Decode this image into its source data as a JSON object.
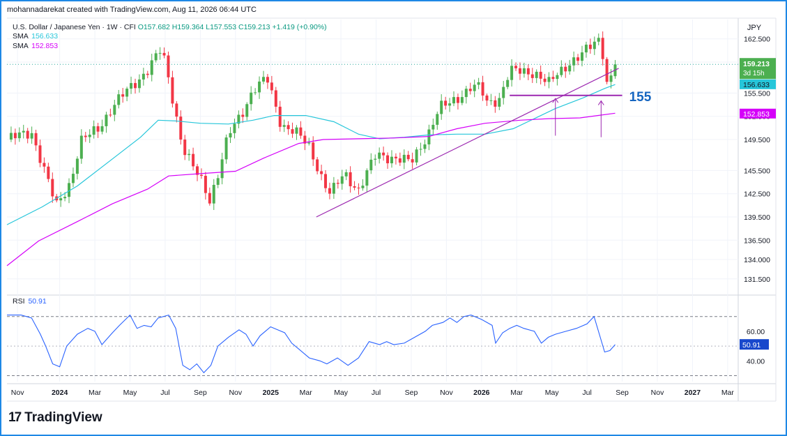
{
  "header": {
    "text": "mohannadarekat created with TradingView.com, Aug 11, 2026 06:44 UTC"
  },
  "symbol": {
    "name": "U.S. Dollar / Japanese Yen · 1W · CFI",
    "O": "O157.682",
    "H": "H159.364",
    "L": "L157.553",
    "C": "C159.213",
    "change": "+1.419 (+0.90%)"
  },
  "sma1": {
    "label": "SMA",
    "value": "156.633",
    "color": "#26c6da"
  },
  "sma2": {
    "label": "SMA",
    "value": "152.853",
    "color": "#d500f9"
  },
  "rsi": {
    "label": "RSI",
    "value": "50.91",
    "color": "#2962ff"
  },
  "currency": "JPY",
  "price_badge": {
    "price": "159.213",
    "countdown": "3d 15h"
  },
  "annotation": "155",
  "logo": "TradingView",
  "colors": {
    "up": "#4caf50",
    "down": "#f23645",
    "trendline": "#9c27b0",
    "frame": "#1e88e5"
  },
  "chart_data": [
    {
      "type": "candlestick",
      "title": "U.S. Dollar / Japanese Yen · 1W · CFI",
      "ylim": [
        129.5,
        165.0
      ],
      "price_ticks": [
        "162.500",
        "159.500",
        "155.500",
        "152.500",
        "149.500",
        "145.500",
        "142.500",
        "139.500",
        "136.500",
        "134.000",
        "131.500"
      ],
      "time_ticks": [
        {
          "label": "Nov",
          "t": 0.3
        },
        {
          "label": "2024",
          "t": 1.5,
          "bold": true
        },
        {
          "label": "Mar",
          "t": 2.5
        },
        {
          "label": "May",
          "t": 3.5
        },
        {
          "label": "Jul",
          "t": 4.5
        },
        {
          "label": "Sep",
          "t": 5.5
        },
        {
          "label": "Nov",
          "t": 6.5
        },
        {
          "label": "2025",
          "t": 7.5,
          "bold": true
        },
        {
          "label": "Mar",
          "t": 8.5
        },
        {
          "label": "May",
          "t": 9.5
        },
        {
          "label": "Jul",
          "t": 10.5
        },
        {
          "label": "Sep",
          "t": 11.5
        },
        {
          "label": "Nov",
          "t": 12.5
        },
        {
          "label": "2026",
          "t": 13.5,
          "bold": true
        },
        {
          "label": "Mar",
          "t": 14.5
        },
        {
          "label": "May",
          "t": 15.5
        },
        {
          "label": "Jul",
          "t": 16.5
        },
        {
          "label": "Sep",
          "t": 17.5
        },
        {
          "label": "Nov",
          "t": 18.5
        },
        {
          "label": "2027",
          "t": 19.5,
          "bold": true
        },
        {
          "label": "Mar",
          "t": 20.5
        }
      ],
      "keypoints": [
        [
          0.0,
          149.5
        ],
        [
          0.7,
          150.5
        ],
        [
          1.1,
          145
        ],
        [
          1.4,
          140.9
        ],
        [
          1.8,
          144
        ],
        [
          2.1,
          149.2
        ],
        [
          2.6,
          151
        ],
        [
          3.0,
          153.7
        ],
        [
          3.5,
          156.2
        ],
        [
          4.0,
          158.5
        ],
        [
          4.4,
          161.2
        ],
        [
          4.6,
          157.3
        ],
        [
          5.0,
          148.5
        ],
        [
          5.3,
          145.8
        ],
        [
          5.6,
          143.7
        ],
        [
          5.75,
          141.6
        ],
        [
          6.0,
          145
        ],
        [
          6.3,
          150
        ],
        [
          6.7,
          153.1
        ],
        [
          7.0,
          156
        ],
        [
          7.4,
          157.3
        ],
        [
          7.8,
          151.5
        ],
        [
          8.2,
          150.5
        ],
        [
          8.6,
          148.5
        ],
        [
          9.0,
          144.2
        ],
        [
          9.2,
          142.4
        ],
        [
          9.6,
          145.1
        ],
        [
          10.0,
          143
        ],
        [
          10.5,
          147.5
        ],
        [
          11.0,
          147.2
        ],
        [
          11.5,
          146.5
        ],
        [
          12.0,
          150.5
        ],
        [
          12.3,
          153.5
        ],
        [
          12.6,
          154.2
        ],
        [
          12.9,
          155.2
        ],
        [
          13.2,
          156.3
        ],
        [
          13.5,
          156.1
        ],
        [
          13.6,
          154.2
        ],
        [
          14.0,
          154.8
        ],
        [
          14.3,
          158.3
        ],
        [
          14.6,
          158.3
        ],
        [
          15.0,
          158.2
        ],
        [
          15.2,
          157.5
        ],
        [
          15.4,
          156.6
        ],
        [
          15.7,
          158.2
        ],
        [
          16.0,
          159.5
        ],
        [
          16.3,
          160.2
        ],
        [
          16.6,
          161.5
        ],
        [
          16.85,
          162.6
        ],
        [
          17.0,
          159.8
        ],
        [
          17.05,
          156.9
        ],
        [
          17.2,
          157.7
        ],
        [
          17.3,
          159.2
        ]
      ],
      "series": [
        {
          "name": "SMA",
          "value_label": "156.633",
          "color": "#26c6da",
          "points": [
            [
              0.0,
              138.5
            ],
            [
              1.0,
              140.8
            ],
            [
              2.0,
              143.5
            ],
            [
              3.0,
              147
            ],
            [
              3.8,
              149.8
            ],
            [
              4.3,
              152.0
            ],
            [
              4.8,
              151.9
            ],
            [
              5.5,
              151.6
            ],
            [
              6.3,
              151.5
            ],
            [
              7.0,
              152.0
            ],
            [
              7.6,
              152.6
            ],
            [
              8.5,
              152.6
            ],
            [
              9.3,
              151.8
            ],
            [
              10.0,
              150.2
            ],
            [
              10.6,
              149.6
            ],
            [
              11.3,
              149.8
            ],
            [
              12.0,
              150.1
            ],
            [
              12.8,
              150.2
            ],
            [
              13.6,
              150.2
            ],
            [
              14.4,
              150.9
            ],
            [
              15.0,
              152.2
            ],
            [
              15.6,
              153.5
            ],
            [
              16.4,
              154.9
            ],
            [
              17.0,
              156.1
            ],
            [
              17.3,
              156.6
            ]
          ]
        },
        {
          "name": "SMA",
          "value_label": "152.853",
          "color": "#d500f9",
          "points": [
            [
              0.0,
              133.2
            ],
            [
              0.9,
              136.4
            ],
            [
              2.0,
              138.9
            ],
            [
              3.0,
              141.2
            ],
            [
              4.0,
              143.1
            ],
            [
              4.6,
              144.8
            ],
            [
              5.5,
              145.1
            ],
            [
              6.5,
              145.4
            ],
            [
              7.3,
              147.1
            ],
            [
              8.3,
              149.0
            ],
            [
              9.0,
              149.5
            ],
            [
              10.0,
              149.6
            ],
            [
              11.0,
              149.7
            ],
            [
              12.0,
              149.9
            ],
            [
              12.8,
              150.9
            ],
            [
              13.6,
              151.6
            ],
            [
              14.6,
              152.0
            ],
            [
              15.4,
              152.2
            ],
            [
              16.3,
              152.3
            ],
            [
              16.8,
              152.6
            ],
            [
              17.3,
              152.9
            ]
          ]
        }
      ],
      "drawings": [
        {
          "type": "trendline",
          "from": [
            8.8,
            139.5
          ],
          "to": [
            17.4,
            158.7
          ]
        },
        {
          "type": "horizontal_line",
          "y": 155.2,
          "from_t": 14.3,
          "to_t": 17.5,
          "label": "155"
        },
        {
          "type": "arrow_up",
          "t": 15.6,
          "from": 150.0,
          "to": 154.8
        },
        {
          "type": "arrow_up",
          "t": 16.9,
          "from": 149.8,
          "to": 154.5
        }
      ]
    },
    {
      "type": "line",
      "title": "RSI",
      "ylim": [
        26,
        84
      ],
      "ticks": [
        "60.00",
        "40.00"
      ],
      "bands": [
        30,
        70
      ],
      "series": [
        {
          "name": "RSI",
          "value_label": "50.91",
          "color": "#2962ff",
          "points": [
            [
              0.0,
              71
            ],
            [
              0.4,
              71
            ],
            [
              0.7,
              69
            ],
            [
              0.95,
              58
            ],
            [
              1.1,
              50
            ],
            [
              1.3,
              38
            ],
            [
              1.5,
              36
            ],
            [
              1.7,
              50
            ],
            [
              2.0,
              58
            ],
            [
              2.3,
              62
            ],
            [
              2.5,
              60
            ],
            [
              2.7,
              51
            ],
            [
              3.0,
              59
            ],
            [
              3.2,
              64
            ],
            [
              3.5,
              71
            ],
            [
              3.7,
              62
            ],
            [
              3.9,
              64
            ],
            [
              4.1,
              63
            ],
            [
              4.3,
              69
            ],
            [
              4.6,
              71
            ],
            [
              4.8,
              62
            ],
            [
              5.0,
              37
            ],
            [
              5.2,
              34
            ],
            [
              5.4,
              38
            ],
            [
              5.6,
              32
            ],
            [
              5.8,
              37
            ],
            [
              6.0,
              50
            ],
            [
              6.3,
              56
            ],
            [
              6.6,
              61
            ],
            [
              6.8,
              58
            ],
            [
              7.0,
              50
            ],
            [
              7.2,
              57
            ],
            [
              7.5,
              63
            ],
            [
              7.7,
              61
            ],
            [
              7.9,
              59
            ],
            [
              8.1,
              52
            ],
            [
              8.3,
              48
            ],
            [
              8.6,
              42
            ],
            [
              8.9,
              40
            ],
            [
              9.1,
              38
            ],
            [
              9.4,
              42
            ],
            [
              9.7,
              37
            ],
            [
              10.0,
              42
            ],
            [
              10.3,
              53
            ],
            [
              10.6,
              51
            ],
            [
              10.8,
              53
            ],
            [
              11.0,
              51
            ],
            [
              11.3,
              52
            ],
            [
              11.6,
              56
            ],
            [
              11.9,
              60
            ],
            [
              12.1,
              64
            ],
            [
              12.4,
              66
            ],
            [
              12.6,
              69
            ],
            [
              12.8,
              66
            ],
            [
              13.0,
              70
            ],
            [
              13.2,
              71
            ],
            [
              13.5,
              68
            ],
            [
              13.8,
              64
            ],
            [
              13.9,
              52
            ],
            [
              14.1,
              59
            ],
            [
              14.3,
              62
            ],
            [
              14.5,
              64
            ],
            [
              14.7,
              62
            ],
            [
              15.0,
              60
            ],
            [
              15.2,
              52
            ],
            [
              15.4,
              56
            ],
            [
              15.6,
              58
            ],
            [
              15.9,
              60
            ],
            [
              16.2,
              62
            ],
            [
              16.5,
              65
            ],
            [
              16.7,
              70
            ],
            [
              16.85,
              58
            ],
            [
              17.0,
              46
            ],
            [
              17.15,
              47
            ],
            [
              17.3,
              51
            ]
          ]
        }
      ]
    }
  ]
}
